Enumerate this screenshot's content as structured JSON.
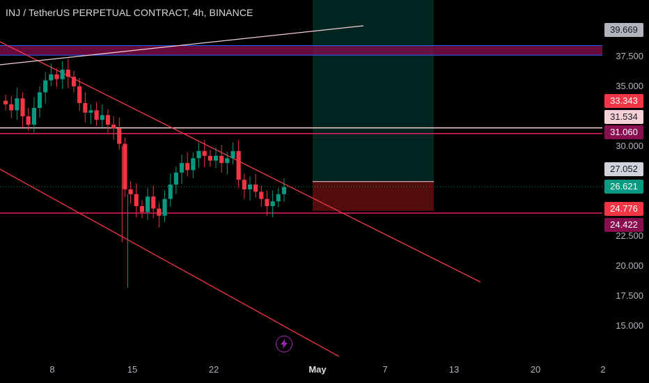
{
  "header": {
    "title": "INJ / TetherUS PERPETUAL CONTRACT, 4h, BINANCE"
  },
  "chart_data": {
    "type": "candlestick",
    "symbol": "INJ / TetherUS PERPETUAL CONTRACT",
    "interval": "4h",
    "exchange": "BINANCE",
    "y_ticks": [
      "37.500",
      "35.000",
      "30.000",
      "22.500",
      "20.000",
      "17.500",
      "15.000"
    ],
    "x_ticks": [
      {
        "label": "8",
        "major": false
      },
      {
        "label": "15",
        "major": false
      },
      {
        "label": "22",
        "major": false
      },
      {
        "label": "May",
        "major": true
      },
      {
        "label": "7",
        "major": false
      },
      {
        "label": "13",
        "major": false
      },
      {
        "label": "20",
        "major": false
      },
      {
        "label": "2",
        "major": false
      }
    ],
    "price_tags": [
      {
        "label": "39.669",
        "bg": "#b2b5be",
        "fg": "#131722"
      },
      {
        "label": "33.343",
        "bg": "#f23645",
        "fg": "#ffffff"
      },
      {
        "label": "31.534",
        "bg": "#f8d0d8",
        "fg": "#131722"
      },
      {
        "label": "31.060",
        "bg": "#880e4f",
        "fg": "#ffffff"
      },
      {
        "label": "27.052",
        "bg": "#d1d4dc",
        "fg": "#131722"
      },
      {
        "label": "26.621",
        "bg": "#089981",
        "fg": "#ffffff"
      },
      {
        "label": "24.776",
        "bg": "#f23645",
        "fg": "#ffffff"
      },
      {
        "label": "24.422",
        "bg": "#880e4f",
        "fg": "#ffffff"
      }
    ],
    "candles_close_path": [
      33.5,
      33.0,
      34.0,
      32.5,
      31.8,
      33.2,
      34.5,
      35.5,
      36.0,
      35.6,
      36.4,
      35.8,
      35.0,
      33.6,
      32.8,
      33.0,
      32.2,
      32.6,
      31.8,
      31.5,
      30.2,
      26.4,
      26.0,
      25.0,
      24.5,
      25.8,
      24.8,
      24.2,
      25.6,
      26.8,
      27.8,
      28.6,
      28.0,
      29.0,
      29.6,
      29.2,
      28.8,
      29.2,
      28.6,
      29.0,
      29.6,
      27.2,
      26.4,
      26.8,
      26.2,
      25.6,
      25.0,
      25.4,
      26.0,
      26.6
    ],
    "colors": {
      "up": "#089981",
      "down": "#f23645",
      "channel": "#f23645",
      "zone": "#880e4f",
      "hline_blue": "#2962ff",
      "trendline": "#f8d0d8",
      "target": "#00695c",
      "stop": "#b71c1c"
    }
  }
}
